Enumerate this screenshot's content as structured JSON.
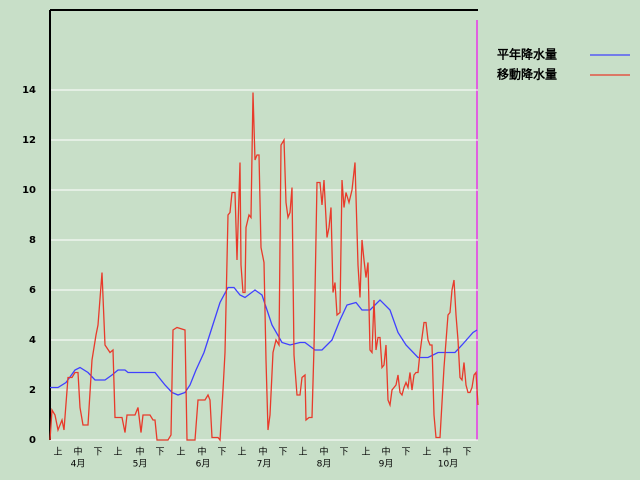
{
  "chart_data": {
    "type": "line",
    "series": [
      {
        "name": "平年降水量",
        "color": "#4040ff",
        "x": [
          0,
          4,
          8,
          12.5,
          15,
          19,
          22.5,
          27.5,
          31,
          34,
          37.5,
          39,
          52.5,
          57.5,
          61,
          64,
          67.5,
          70,
          73,
          77,
          81,
          85,
          89,
          92,
          95,
          97.5,
          102.5,
          106,
          111,
          116,
          120,
          125,
          127.5,
          132.5,
          136,
          141,
          145,
          148.5,
          153,
          156,
          160,
          165,
          170,
          174,
          178,
          184,
          189,
          194,
          202.5,
          206,
          211.5,
          213.5
        ],
        "values": [
          2.1,
          2.1,
          2.3,
          2.8,
          2.9,
          2.7,
          2.4,
          2.4,
          2.6,
          2.8,
          2.8,
          2.7,
          2.7,
          2.2,
          1.9,
          1.8,
          1.9,
          2.2,
          2.8,
          3.5,
          4.5,
          5.5,
          6.1,
          6.1,
          5.8,
          5.7,
          6.0,
          5.8,
          4.6,
          3.9,
          3.8,
          3.9,
          3.9,
          3.6,
          3.6,
          4.0,
          4.8,
          5.4,
          5.5,
          5.2,
          5.2,
          5.6,
          5.2,
          4.3,
          3.8,
          3.3,
          3.3,
          3.5,
          3.5,
          3.8,
          4.3,
          4.4
        ]
      },
      {
        "name": "移動降水量",
        "color": "#e83a2a",
        "x": [
          0,
          1,
          2.5,
          4,
          6,
          7,
          9,
          11,
          12.5,
          14,
          15,
          16.5,
          19,
          21,
          23,
          24,
          26,
          27.5,
          30,
          31.5,
          32.5,
          36,
          37.5,
          38.5,
          42.5,
          44,
          45.5,
          46.5,
          50,
          51.5,
          52.5,
          53.5,
          59,
          60.5,
          61.5,
          63.5,
          67.5,
          68.5,
          72.5,
          74,
          77.5,
          79,
          80,
          81,
          84,
          85,
          86.5,
          87.5,
          89,
          90,
          91,
          92.5,
          93.5,
          95,
          95.5,
          96.5,
          97.5,
          98,
          99.5,
          100.5,
          101.5,
          102.5,
          103.5,
          104.5,
          105.5,
          107,
          108,
          109,
          110,
          111.5,
          113,
          114.5,
          115.5,
          117,
          118,
          119,
          120,
          121,
          122,
          123.5,
          125,
          126,
          127.5,
          128,
          129.5,
          131,
          132,
          133.5,
          135,
          136,
          137,
          138.5,
          139.5,
          140.5,
          141.5,
          142.5,
          143.5,
          145,
          146,
          147,
          148,
          149.5,
          151,
          152.5,
          154,
          155,
          156,
          157,
          158,
          159,
          160,
          161,
          162,
          163,
          164,
          165,
          166,
          167,
          168,
          169,
          170,
          171,
          173,
          174,
          175,
          176,
          177,
          178,
          179,
          180,
          181,
          182,
          183,
          184,
          185,
          187,
          188,
          189,
          190,
          191,
          192,
          193,
          195,
          197,
          199,
          200,
          201,
          202,
          203,
          204,
          205,
          206,
          207,
          208,
          209,
          210,
          211,
          212,
          213,
          214
        ],
        "values": [
          0,
          1.2,
          1.0,
          0.4,
          0.8,
          0.4,
          2.5,
          2.5,
          2.7,
          2.7,
          1.3,
          0.6,
          0.6,
          3.2,
          4.2,
          4.6,
          6.7,
          3.8,
          3.5,
          3.6,
          0.9,
          0.9,
          0.3,
          1.0,
          1.0,
          1.3,
          0.3,
          1.0,
          1.0,
          0.8,
          0.8,
          0,
          0,
          0.2,
          4.4,
          4.5,
          4.4,
          0,
          0,
          1.6,
          1.6,
          1.8,
          1.6,
          0.1,
          0.1,
          0,
          2.0,
          3.5,
          9.0,
          9.1,
          9.9,
          9.9,
          7.2,
          11.1,
          7.0,
          5.9,
          5.9,
          8.5,
          9.0,
          8.9,
          13.9,
          11.2,
          11.4,
          11.4,
          7.7,
          7.1,
          3.2,
          0.4,
          1.0,
          3.5,
          4.0,
          3.8,
          11.8,
          12.0,
          9.5,
          8.9,
          9.1,
          10.1,
          3.4,
          1.8,
          1.8,
          2.5,
          2.6,
          0.8,
          0.9,
          0.9,
          3.7,
          10.3,
          10.3,
          9.4,
          10.4,
          8.1,
          8.5,
          9.3,
          5.9,
          6.3,
          5.0,
          5.1,
          10.4,
          9.3,
          9.9,
          9.5,
          10.0,
          11.1,
          7.0,
          5.7,
          8.0,
          7.2,
          6.5,
          7.1,
          3.6,
          3.5,
          5.6,
          3.6,
          4.1,
          4.1,
          2.9,
          3.0,
          3.8,
          1.6,
          1.4,
          2.0,
          2.2,
          2.6,
          1.9,
          1.8,
          2.1,
          2.3,
          2.1,
          2.7,
          2.0,
          2.6,
          2.7,
          2.7,
          3.5,
          4.7,
          4.7,
          4.0,
          3.8,
          3.8,
          1.0,
          0.1,
          0.1,
          2.9,
          5.0,
          5.1,
          6.0,
          6.4,
          5.0,
          4.0,
          2.5,
          2.4,
          3.1,
          2.2,
          1.9,
          1.9,
          2.1,
          2.6,
          2.7,
          1.4
        ]
      }
    ],
    "xlim": [
      0,
      214
    ],
    "ylim": [
      0,
      17.2
    ],
    "yticks": [
      0,
      2,
      4,
      6,
      8,
      10,
      12,
      14
    ],
    "xticks": [
      {
        "value": 4,
        "label": "上"
      },
      {
        "value": 14,
        "label": "中"
      },
      {
        "value": 24,
        "label": "下"
      },
      {
        "value": 34,
        "label": "上"
      },
      {
        "value": 45,
        "label": "中"
      },
      {
        "value": 55,
        "label": "下"
      },
      {
        "value": 65.5,
        "label": "上"
      },
      {
        "value": 76,
        "label": "中"
      },
      {
        "value": 86,
        "label": "下"
      },
      {
        "value": 96,
        "label": "上"
      },
      {
        "value": 106.5,
        "label": "中"
      },
      {
        "value": 116.5,
        "label": "下"
      },
      {
        "value": 126.5,
        "label": "上"
      },
      {
        "value": 137,
        "label": "中"
      },
      {
        "value": 147,
        "label": "下"
      },
      {
        "value": 158,
        "label": "上"
      },
      {
        "value": 168,
        "label": "中"
      },
      {
        "value": 178,
        "label": "下"
      },
      {
        "value": 188.5,
        "label": "上"
      },
      {
        "value": 198.5,
        "label": "中"
      },
      {
        "value": 208.5,
        "label": "下"
      }
    ],
    "month_labels": [
      {
        "value": 14,
        "label": "4月"
      },
      {
        "value": 45,
        "label": "5月"
      },
      {
        "value": 76.5,
        "label": "6月"
      },
      {
        "value": 107,
        "label": "7月"
      },
      {
        "value": 137,
        "label": "8月"
      },
      {
        "value": 168,
        "label": "9月"
      },
      {
        "value": 199,
        "label": "10月"
      }
    ],
    "grid": true,
    "legend": "right"
  }
}
